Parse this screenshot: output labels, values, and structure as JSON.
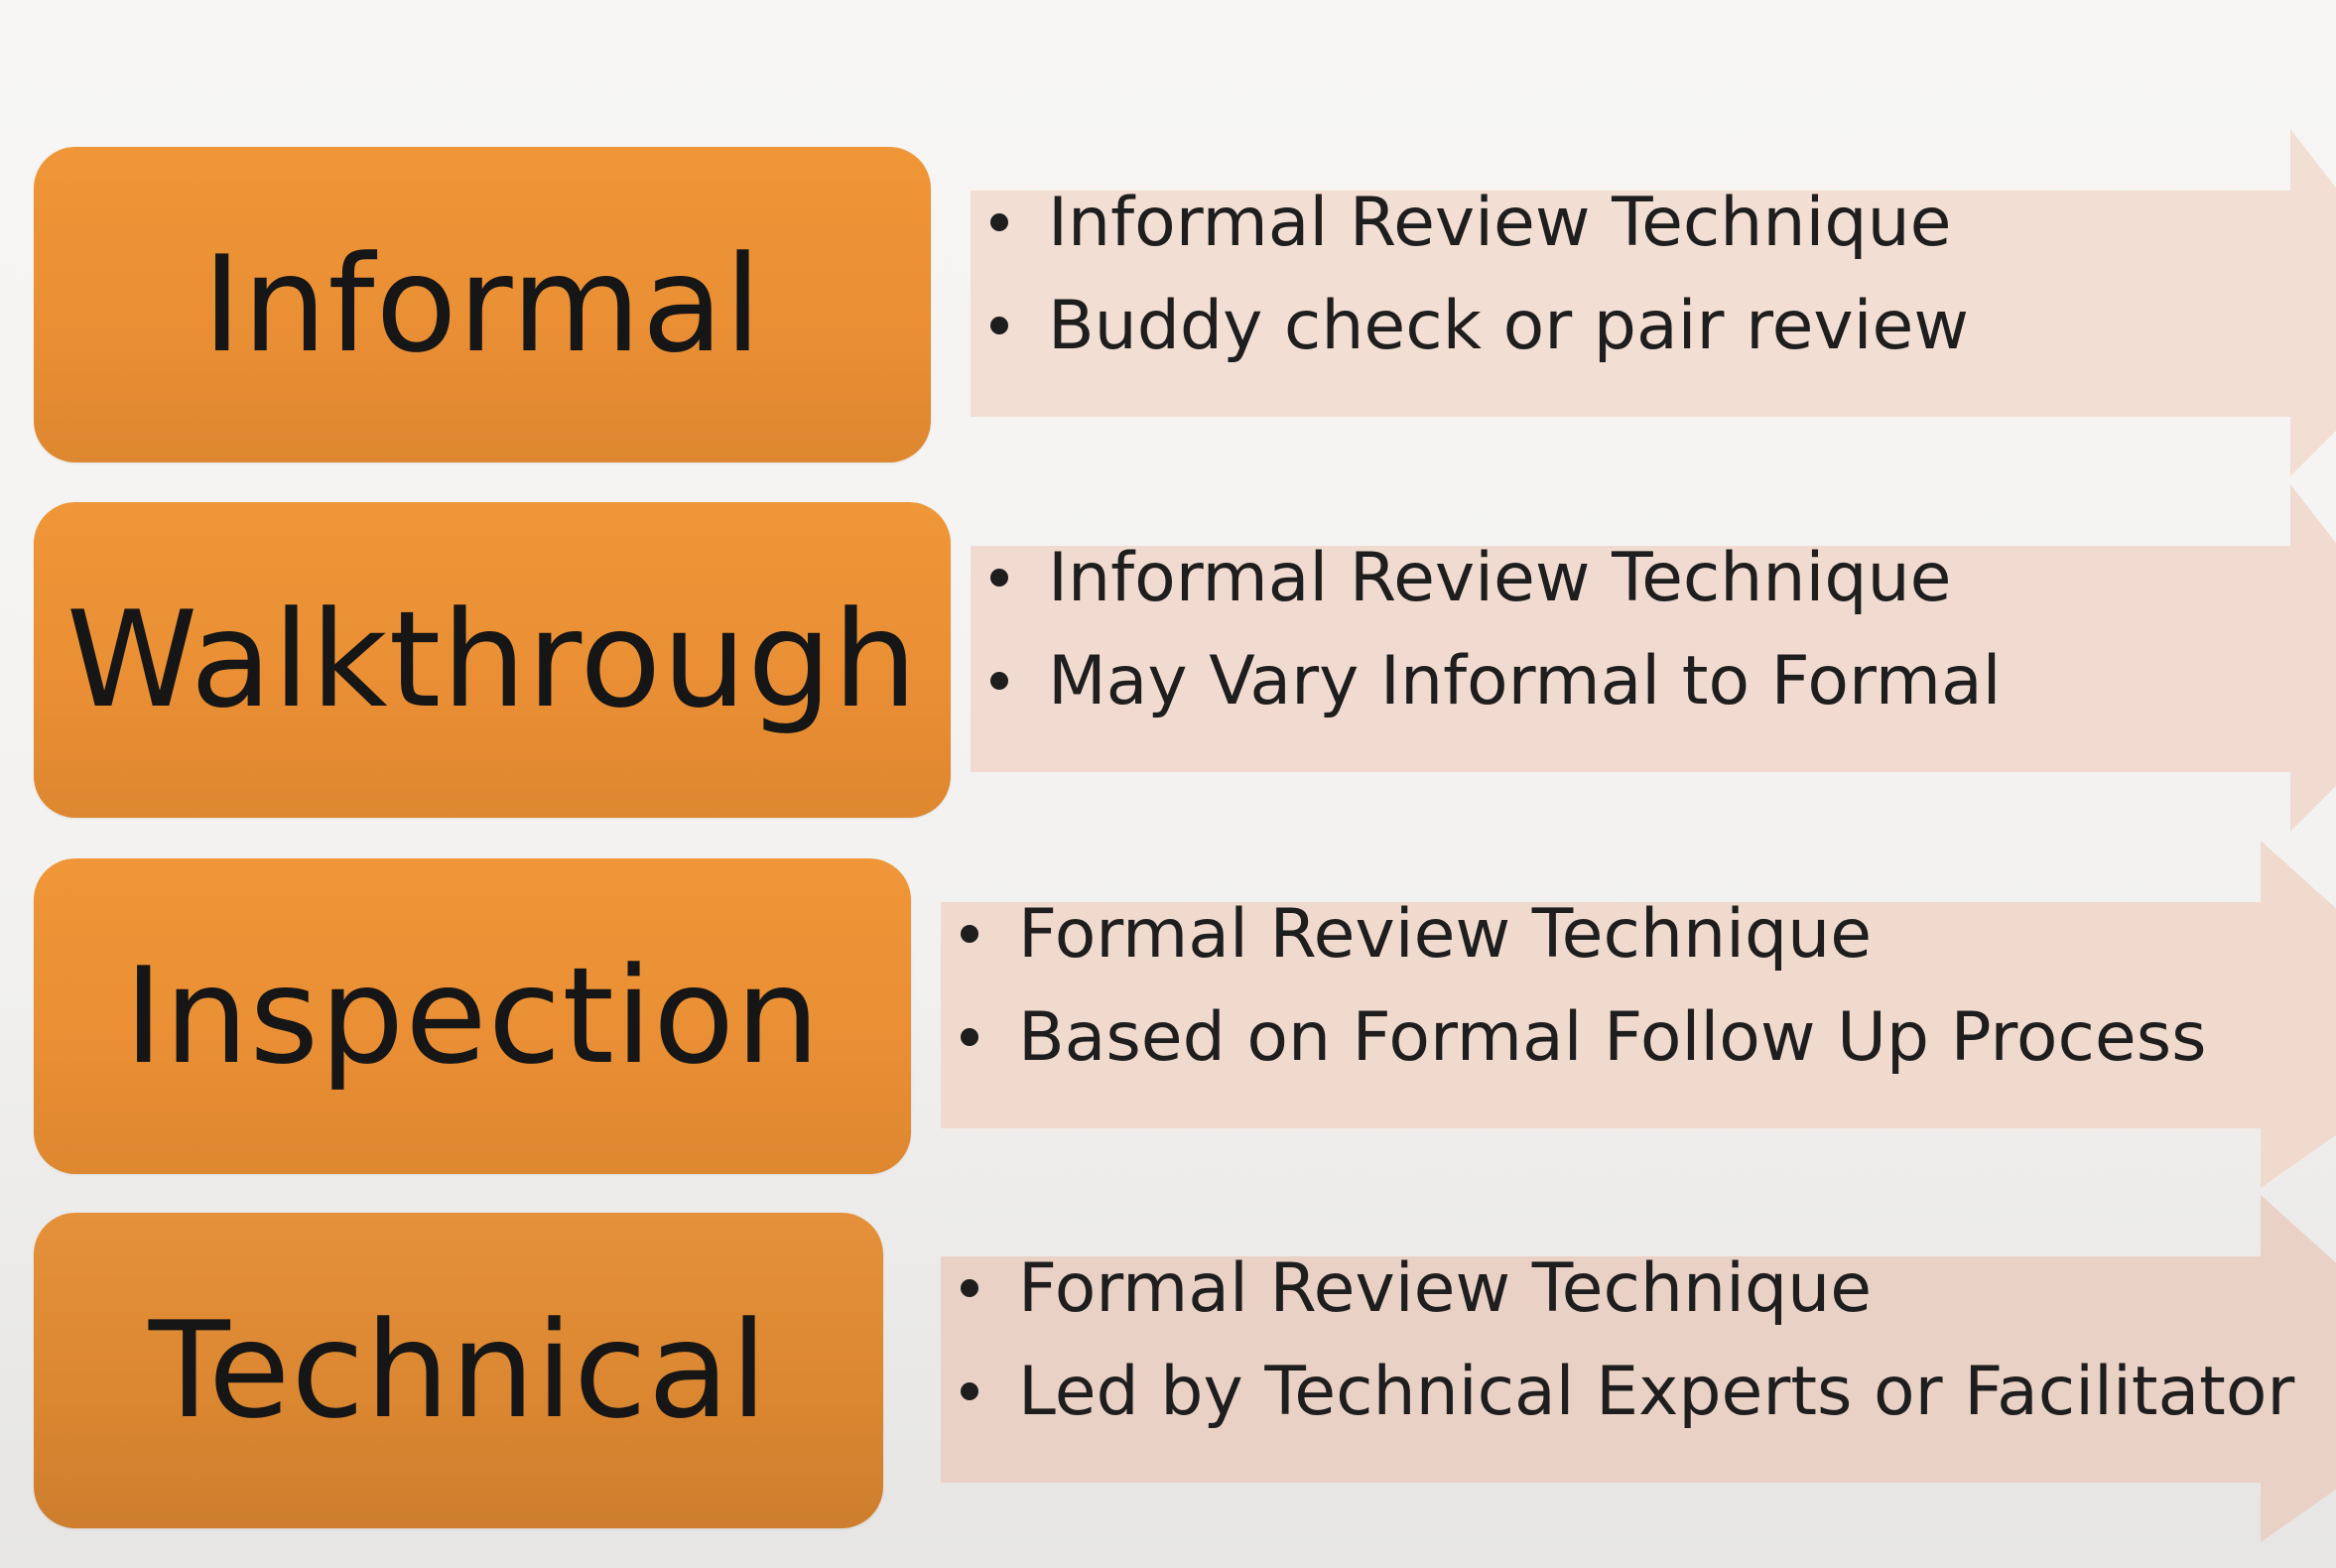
{
  "colors": {
    "label_fill": "#ea8f35",
    "arrow_fill": "#f2ddd2",
    "text": "#1e1e1e"
  },
  "rows": [
    {
      "label": "Informal",
      "bullets": [
        "Informal Review Technique",
        "Buddy check or pair review"
      ]
    },
    {
      "label": "Walkthrough",
      "bullets": [
        "Informal Review Technique",
        "May Vary Informal to Formal"
      ]
    },
    {
      "label": "Inspection",
      "bullets": [
        "Formal  Review Technique",
        "Based on Formal Follow Up Process"
      ]
    },
    {
      "label": "Technical",
      "bullets": [
        "Formal Review Technique",
        "Led by Technical Experts or Facilitator"
      ]
    }
  ]
}
